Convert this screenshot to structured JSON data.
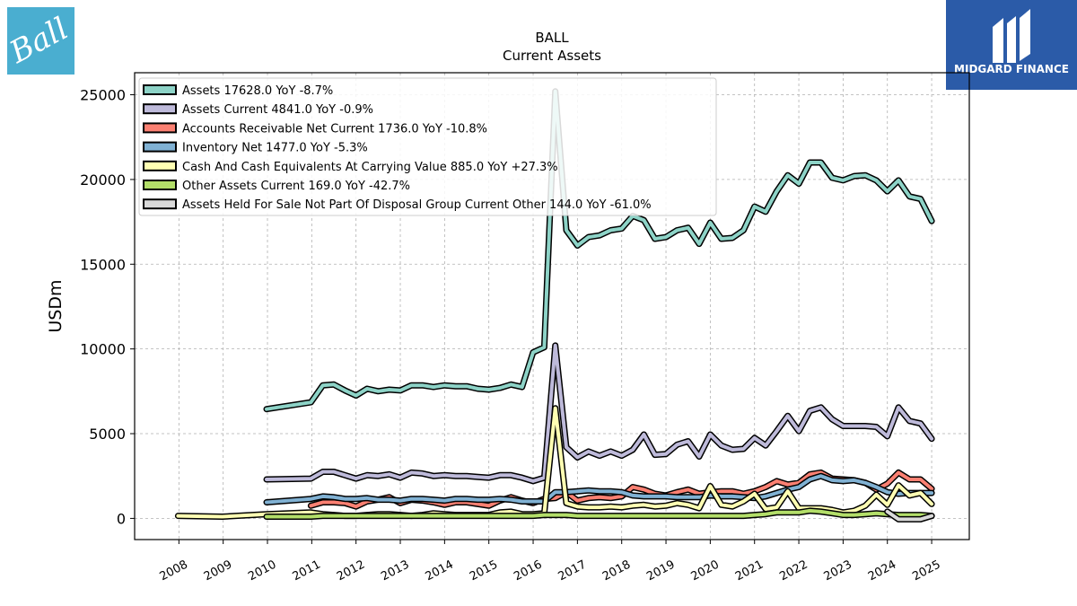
{
  "brand": {
    "company_logo_text": "Ball",
    "company_logo_color": "#4aaed0",
    "publisher_name": "MIDGARD FINANCE",
    "publisher_color": "#2b5ba8"
  },
  "chart_data": {
    "type": "line",
    "title": "BALL",
    "subtitle": "Current  Assets",
    "xlabel": "",
    "ylabel": "USDm",
    "xlim": [
      2007.0,
      2025.85
    ],
    "ylim": [
      -1250,
      26300
    ],
    "yticks": [
      0,
      5000,
      10000,
      15000,
      20000,
      25000
    ],
    "xticks": [
      "2008",
      "2009",
      "2010",
      "2011",
      "2012",
      "2013",
      "2014",
      "2015",
      "2016",
      "2017",
      "2018",
      "2019",
      "2020",
      "2021",
      "2022",
      "2023",
      "2024",
      "2025"
    ],
    "grid": true,
    "legend_position": "top-left",
    "series": [
      {
        "name": "Assets  17628.0 YoY -8.7%",
        "color": "#8dd3c7",
        "x": [
          2009.98,
          2010.98,
          2011.25,
          2011.5,
          2011.75,
          2012.0,
          2012.25,
          2012.5,
          2012.75,
          2013.0,
          2013.25,
          2013.5,
          2013.75,
          2014.0,
          2014.25,
          2014.5,
          2014.75,
          2015.0,
          2015.25,
          2015.5,
          2015.75,
          2016.0,
          2016.25,
          2016.5,
          2016.75,
          2017.0,
          2017.25,
          2017.5,
          2017.75,
          2018.0,
          2018.25,
          2018.5,
          2018.75,
          2019.0,
          2019.25,
          2019.5,
          2019.75,
          2020.0,
          2020.25,
          2020.5,
          2020.75,
          2021.0,
          2021.25,
          2021.5,
          2021.75,
          2022.0,
          2022.25,
          2022.5,
          2022.75,
          2023.0,
          2023.25,
          2023.5,
          2023.75,
          2024.0,
          2024.25,
          2024.5,
          2024.75,
          2025.0
        ],
        "values": [
          6450,
          6850,
          7850,
          7900,
          7550,
          7250,
          7650,
          7500,
          7600,
          7550,
          7850,
          7850,
          7750,
          7850,
          7800,
          7800,
          7650,
          7600,
          7700,
          7900,
          7750,
          9800,
          10100,
          25200,
          17000,
          16100,
          16600,
          16700,
          17000,
          17100,
          17850,
          17600,
          16500,
          16600,
          17000,
          17150,
          16200,
          17450,
          16500,
          16550,
          17000,
          18400,
          18100,
          19300,
          20250,
          19750,
          21000,
          21000,
          20100,
          19950,
          20200,
          20250,
          19950,
          19300,
          19950,
          19000,
          18850,
          17550
        ]
      },
      {
        "name": "Assets Current  4841.0 YoY -0.9%",
        "color": "#bebada",
        "x": [
          2009.98,
          2010.98,
          2011.25,
          2011.5,
          2011.75,
          2012.0,
          2012.25,
          2012.5,
          2012.75,
          2013.0,
          2013.25,
          2013.5,
          2013.75,
          2014.0,
          2014.25,
          2014.5,
          2014.75,
          2015.0,
          2015.25,
          2015.5,
          2015.75,
          2016.0,
          2016.25,
          2016.5,
          2016.75,
          2017.0,
          2017.25,
          2017.5,
          2017.75,
          2018.0,
          2018.25,
          2018.5,
          2018.75,
          2019.0,
          2019.25,
          2019.5,
          2019.75,
          2020.0,
          2020.25,
          2020.5,
          2020.75,
          2021.0,
          2021.25,
          2021.5,
          2021.75,
          2022.0,
          2022.25,
          2022.5,
          2022.75,
          2023.0,
          2023.25,
          2023.5,
          2023.75,
          2024.0,
          2024.25,
          2024.5,
          2024.75,
          2025.0
        ],
        "values": [
          2300,
          2350,
          2750,
          2750,
          2550,
          2350,
          2550,
          2500,
          2600,
          2400,
          2700,
          2650,
          2500,
          2550,
          2500,
          2500,
          2450,
          2400,
          2550,
          2550,
          2400,
          2200,
          2400,
          10200,
          4200,
          3600,
          3950,
          3700,
          3950,
          3700,
          4050,
          4950,
          3750,
          3800,
          4350,
          4550,
          3650,
          4950,
          4300,
          4050,
          4100,
          4750,
          4300,
          5150,
          6050,
          5150,
          6350,
          6550,
          5850,
          5450,
          5450,
          5450,
          5400,
          4850,
          6550,
          5750,
          5600,
          4700
        ]
      },
      {
        "name": "Accounts Receivable Net Current  1736.0 YoY -10.8%",
        "color": "#fb8072",
        "x": [
          2010.98,
          2011.25,
          2011.5,
          2011.75,
          2012.0,
          2012.25,
          2012.5,
          2012.75,
          2013.0,
          2013.25,
          2013.5,
          2013.75,
          2014.0,
          2014.25,
          2014.5,
          2014.75,
          2015.0,
          2015.25,
          2015.5,
          2015.75,
          2016.0,
          2016.25,
          2016.5,
          2016.75,
          2017.0,
          2017.25,
          2017.5,
          2017.75,
          2018.0,
          2018.25,
          2018.5,
          2018.75,
          2019.0,
          2019.25,
          2019.5,
          2019.75,
          2020.0,
          2020.25,
          2020.5,
          2020.75,
          2021.0,
          2021.25,
          2021.5,
          2021.75,
          2022.0,
          2022.25,
          2022.5,
          2022.75,
          2023.0,
          2023.25,
          2023.5,
          2023.75,
          2024.0,
          2024.25,
          2024.5,
          2024.75,
          2025.0
        ],
        "values": [
          750,
          950,
          950,
          900,
          700,
          1000,
          1100,
          1250,
          900,
          1100,
          1050,
          950,
          800,
          950,
          950,
          850,
          750,
          1050,
          1250,
          1050,
          900,
          1150,
          1200,
          1550,
          1050,
          1200,
          1250,
          1200,
          1300,
          1850,
          1700,
          1450,
          1350,
          1550,
          1700,
          1450,
          1550,
          1600,
          1600,
          1450,
          1600,
          1850,
          2200,
          2000,
          2100,
          2600,
          2700,
          2350,
          2300,
          2250,
          2100,
          1700,
          2050,
          2700,
          2300,
          2300,
          1750
        ]
      },
      {
        "name": "Inventory Net  1477.0 YoY -5.3%",
        "color": "#80b1d3",
        "x": [
          2009.98,
          2010.98,
          2011.25,
          2011.5,
          2011.75,
          2012.0,
          2012.25,
          2012.5,
          2012.75,
          2013.0,
          2013.25,
          2013.5,
          2013.75,
          2014.0,
          2014.25,
          2014.5,
          2014.75,
          2015.0,
          2015.25,
          2015.5,
          2015.75,
          2016.0,
          2016.25,
          2016.5,
          2016.75,
          2017.0,
          2017.25,
          2017.5,
          2017.75,
          2018.0,
          2018.25,
          2018.5,
          2018.75,
          2019.0,
          2019.25,
          2019.5,
          2019.75,
          2020.0,
          2020.25,
          2020.5,
          2020.75,
          2021.0,
          2021.25,
          2021.5,
          2021.75,
          2022.0,
          2022.25,
          2022.5,
          2022.75,
          2023.0,
          2023.25,
          2023.5,
          2023.75,
          2024.0,
          2024.25,
          2024.5,
          2024.75,
          2025.0
        ],
        "values": [
          950,
          1150,
          1300,
          1250,
          1150,
          1150,
          1200,
          1100,
          1100,
          1050,
          1150,
          1150,
          1100,
          1050,
          1150,
          1150,
          1100,
          1100,
          1150,
          1100,
          1000,
          1000,
          1000,
          1550,
          1550,
          1600,
          1650,
          1600,
          1600,
          1550,
          1350,
          1300,
          1300,
          1300,
          1250,
          1250,
          1250,
          1350,
          1300,
          1300,
          1250,
          1200,
          1300,
          1500,
          1700,
          1850,
          2300,
          2500,
          2250,
          2200,
          2250,
          2100,
          1850,
          1550,
          1450,
          1500,
          1500,
          1500
        ]
      },
      {
        "name": "Cash And Cash Equivalents At Carrying Value  885.0 YoY +27.3%",
        "color": "#ffffb3",
        "x": [
          2007.98,
          2008.98,
          2009.98,
          2010.98,
          2011.25,
          2011.5,
          2011.75,
          2012.0,
          2012.25,
          2012.5,
          2012.75,
          2013.0,
          2013.25,
          2013.5,
          2013.75,
          2014.0,
          2014.25,
          2014.5,
          2014.75,
          2015.0,
          2015.25,
          2015.5,
          2015.75,
          2016.0,
          2016.25,
          2016.5,
          2016.75,
          2017.0,
          2017.25,
          2017.5,
          2017.75,
          2018.0,
          2018.25,
          2018.5,
          2018.75,
          2019.0,
          2019.25,
          2019.5,
          2019.75,
          2020.0,
          2020.25,
          2020.5,
          2020.75,
          2021.0,
          2021.25,
          2021.5,
          2021.75,
          2022.0,
          2022.25,
          2022.5,
          2022.75,
          2023.0,
          2023.25,
          2023.5,
          2023.75,
          2024.0,
          2024.25,
          2024.5,
          2024.75,
          2025.0
        ],
        "values": [
          150,
          100,
          250,
          350,
          250,
          200,
          150,
          150,
          200,
          250,
          250,
          200,
          150,
          200,
          300,
          250,
          200,
          200,
          200,
          200,
          350,
          400,
          250,
          250,
          300,
          6500,
          900,
          700,
          650,
          650,
          700,
          650,
          750,
          800,
          700,
          750,
          900,
          800,
          600,
          1900,
          800,
          700,
          1000,
          1450,
          550,
          650,
          1600,
          600,
          600,
          600,
          500,
          350,
          450,
          750,
          1400,
          800,
          1950,
          1350,
          1500,
          850
        ]
      },
      {
        "name": "Other Assets Current  169.0 YoY -42.7%",
        "color": "#b3de69",
        "x": [
          2009.98,
          2010.98,
          2011.25,
          2011.5,
          2011.75,
          2012.0,
          2012.25,
          2012.5,
          2012.75,
          2013.0,
          2013.25,
          2013.5,
          2013.75,
          2014.0,
          2014.25,
          2014.5,
          2014.75,
          2015.0,
          2015.25,
          2015.5,
          2015.75,
          2016.0,
          2016.25,
          2016.5,
          2016.75,
          2017.0,
          2017.25,
          2017.5,
          2017.75,
          2018.0,
          2018.25,
          2018.5,
          2018.75,
          2019.0,
          2019.25,
          2019.5,
          2019.75,
          2020.0,
          2020.25,
          2020.5,
          2020.75,
          2021.0,
          2021.25,
          2021.5,
          2021.75,
          2022.0,
          2022.25,
          2022.5,
          2022.75,
          2023.0,
          2023.25,
          2023.5,
          2023.75,
          2024.0,
          2024.25,
          2024.5,
          2024.75,
          2025.0
        ],
        "values": [
          100,
          100,
          150,
          150,
          150,
          150,
          150,
          150,
          150,
          150,
          150,
          150,
          150,
          150,
          150,
          150,
          150,
          150,
          150,
          150,
          150,
          150,
          200,
          200,
          200,
          150,
          150,
          150,
          150,
          150,
          150,
          150,
          150,
          150,
          150,
          150,
          150,
          150,
          150,
          150,
          150,
          200,
          250,
          350,
          350,
          350,
          450,
          400,
          300,
          200,
          200,
          250,
          300,
          250,
          200,
          200,
          200,
          150
        ]
      },
      {
        "name": "Assets Held For Sale Not Part Of Disposal Group Current Other  144.0 YoY -61.0%",
        "color": "#d9d9d9",
        "x": [
          2024.0,
          2024.25,
          2024.5,
          2024.75,
          2025.0
        ],
        "values": [
          400,
          -50,
          -50,
          -50,
          150
        ]
      }
    ]
  }
}
